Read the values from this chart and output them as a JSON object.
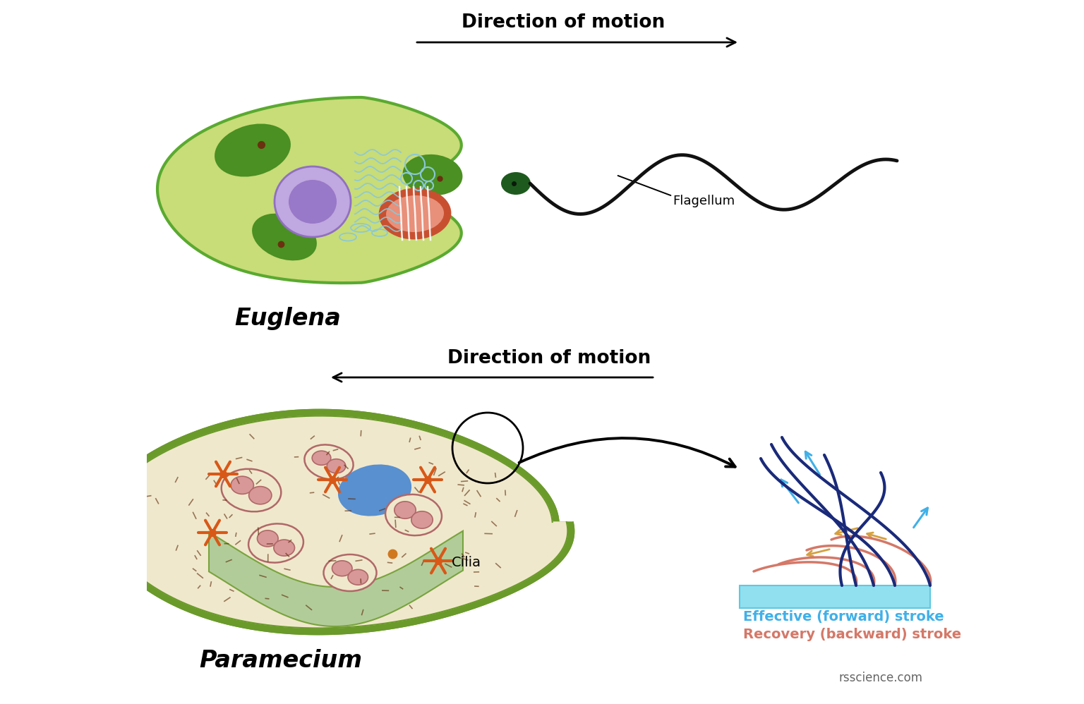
{
  "background_color": "#ffffff",
  "title_euglena": "Direction of motion",
  "title_paramecium": "Direction of motion",
  "label_euglena": "Euglena",
  "label_paramecium": "Paramecium",
  "label_flagellum": "Flagellum",
  "label_cilia": "Cilia",
  "label_effective": "Effective (forward) stroke",
  "label_recovery": "Recovery (backward) stroke",
  "label_rsscience": "rsscience.com",
  "euglena_body_color": "#c8dc78",
  "euglena_outline_color": "#5aaa30",
  "euglena_chloroplast_color": "#4a9022",
  "euglena_nucleus_fill": "#c0a8e0",
  "euglena_nucleus_inner": "#9878c8",
  "euglena_er_color": "#8ac8d8",
  "euglena_mito_outer": "#c85030",
  "euglena_mito_fill": "#e8907a",
  "euglena_eyespot_color": "#1e5a1e",
  "paramecium_cytoplasm": "#f0e8cc",
  "paramecium_outer_color": "#6a9a2a",
  "paramecium_membrane_color": "#8ab840",
  "paramecium_cilia_color": "#558822",
  "paramecium_blue_vac": "#5890d0",
  "paramecium_pink_vac_fill": "#d89898",
  "paramecium_pink_vac_edge": "#b06868",
  "paramecium_star_color": "#d85818",
  "paramecium_groove_color": "#a8c890",
  "effective_blue_dark": "#1a2a7a",
  "effective_blue_light": "#40b0e8",
  "recovery_salmon": "#d47868",
  "recovery_arrow_color": "#d4a040",
  "surface_color": "#90e0f0",
  "surface_dark": "#60c8e0"
}
